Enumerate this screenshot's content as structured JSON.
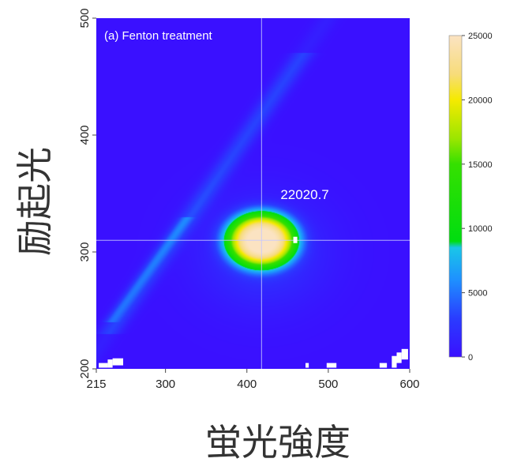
{
  "chart_data": {
    "type": "heatmap",
    "panel_label": "(a) Fenton treatment",
    "xlabel": "蛍光強度",
    "ylabel": "励起光",
    "xlim": [
      215,
      600
    ],
    "ylim": [
      200,
      500
    ],
    "x_ticks": [
      {
        "value": 215,
        "label": "215"
      },
      {
        "value": 300,
        "label": "300"
      },
      {
        "value": 400,
        "label": "400"
      },
      {
        "value": 500,
        "label": "500"
      },
      {
        "value": 600,
        "label": "600"
      }
    ],
    "y_ticks": [
      {
        "value": 200,
        "label": "200"
      },
      {
        "value": 300,
        "label": "300"
      },
      {
        "value": 400,
        "label": "400"
      },
      {
        "value": 500,
        "label": "500"
      }
    ],
    "peak": {
      "emission": 418,
      "excitation": 310,
      "intensity": 22020.7,
      "label": "22020.7"
    },
    "colorbar": {
      "range": [
        0,
        25000
      ],
      "ticks": [
        {
          "value": 0,
          "label": "0"
        },
        {
          "value": 5000,
          "label": "5000"
        },
        {
          "value": 10000,
          "label": "10000"
        },
        {
          "value": 15000,
          "label": "15000"
        },
        {
          "value": 20000,
          "label": "20000"
        },
        {
          "value": 25000,
          "label": "25000"
        }
      ],
      "colors": [
        {
          "value": 0,
          "color": "#3a10ff"
        },
        {
          "value": 3000,
          "color": "#2a3cff"
        },
        {
          "value": 6000,
          "color": "#1e90ff"
        },
        {
          "value": 8500,
          "color": "#19c6e8"
        },
        {
          "value": 9000,
          "color": "#00dd10"
        },
        {
          "value": 15000,
          "color": "#35e000"
        },
        {
          "value": 17000,
          "color": "#9ce600"
        },
        {
          "value": 20000,
          "color": "#f5ea00"
        },
        {
          "value": 22000,
          "color": "#f7dc7a"
        },
        {
          "value": 25000,
          "color": "#fbe3c2"
        }
      ]
    }
  }
}
